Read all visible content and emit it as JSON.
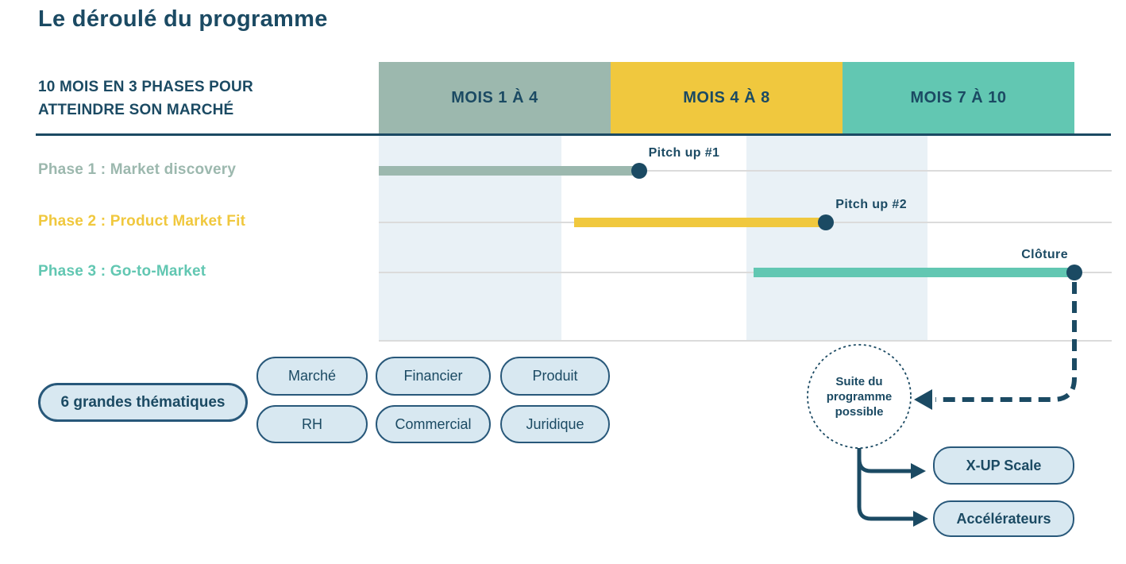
{
  "title": "Le déroulé du programme",
  "subtitle": {
    "line1": "10 MOIS EN 3 PHASES POUR",
    "line2": "ATTEINDRE SON MARCHÉ"
  },
  "colors": {
    "navy": "#1b4a63",
    "sage": "#9cb8ae",
    "yellow": "#f0c83e",
    "teal": "#62c7b2",
    "band": "#e9f1f6",
    "gridline": "#dbdbdb",
    "pill_fill": "#d8e8f1",
    "pill_border": "#28587a"
  },
  "chart_data": {
    "type": "gantt",
    "title": "Le déroulé du programme",
    "subtitle": "10 mois en 3 phases pour atteindre son marché",
    "x_unit": "mois",
    "x_range": [
      0,
      10
    ],
    "grid": true,
    "columns": [
      {
        "label": "MOIS 1 À 4",
        "color": "#9cb8ae"
      },
      {
        "label": "MOIS 4 À 8",
        "color": "#f0c83e"
      },
      {
        "label": "MOIS 7 À 10",
        "color": "#62c7b2"
      }
    ],
    "shaded_bands_months": [
      [
        0,
        2.63
      ],
      [
        5.29,
        7.89
      ]
    ],
    "phases": [
      {
        "label": "Phase 1 : Market discovery",
        "color": "#9cb8ae",
        "start_month": 0,
        "end_month": 3.74,
        "milestone": {
          "label": "Pitch up #1",
          "month": 3.74,
          "label_side": "right"
        }
      },
      {
        "label": "Phase 2 : Product Market Fit",
        "color": "#f0c83e",
        "start_month": 2.81,
        "end_month": 6.43,
        "milestone": {
          "label": "Pitch up #2",
          "month": 6.43,
          "label_side": "right"
        }
      },
      {
        "label": "Phase 3 : Go-to-Market",
        "color": "#62c7b2",
        "start_month": 5.39,
        "end_month": 10,
        "milestone": {
          "label": "Clôture",
          "month": 10,
          "label_side": "left"
        }
      }
    ]
  },
  "themes": {
    "intro_label": "6 grandes thématiques",
    "items": [
      "Marché",
      "Financier",
      "Produit",
      "RH",
      "Commercial",
      "Juridique"
    ]
  },
  "followup": {
    "circle_lines": [
      "Suite du",
      "programme",
      "possible"
    ],
    "options": [
      "X-UP Scale",
      "Accélérateurs"
    ]
  }
}
